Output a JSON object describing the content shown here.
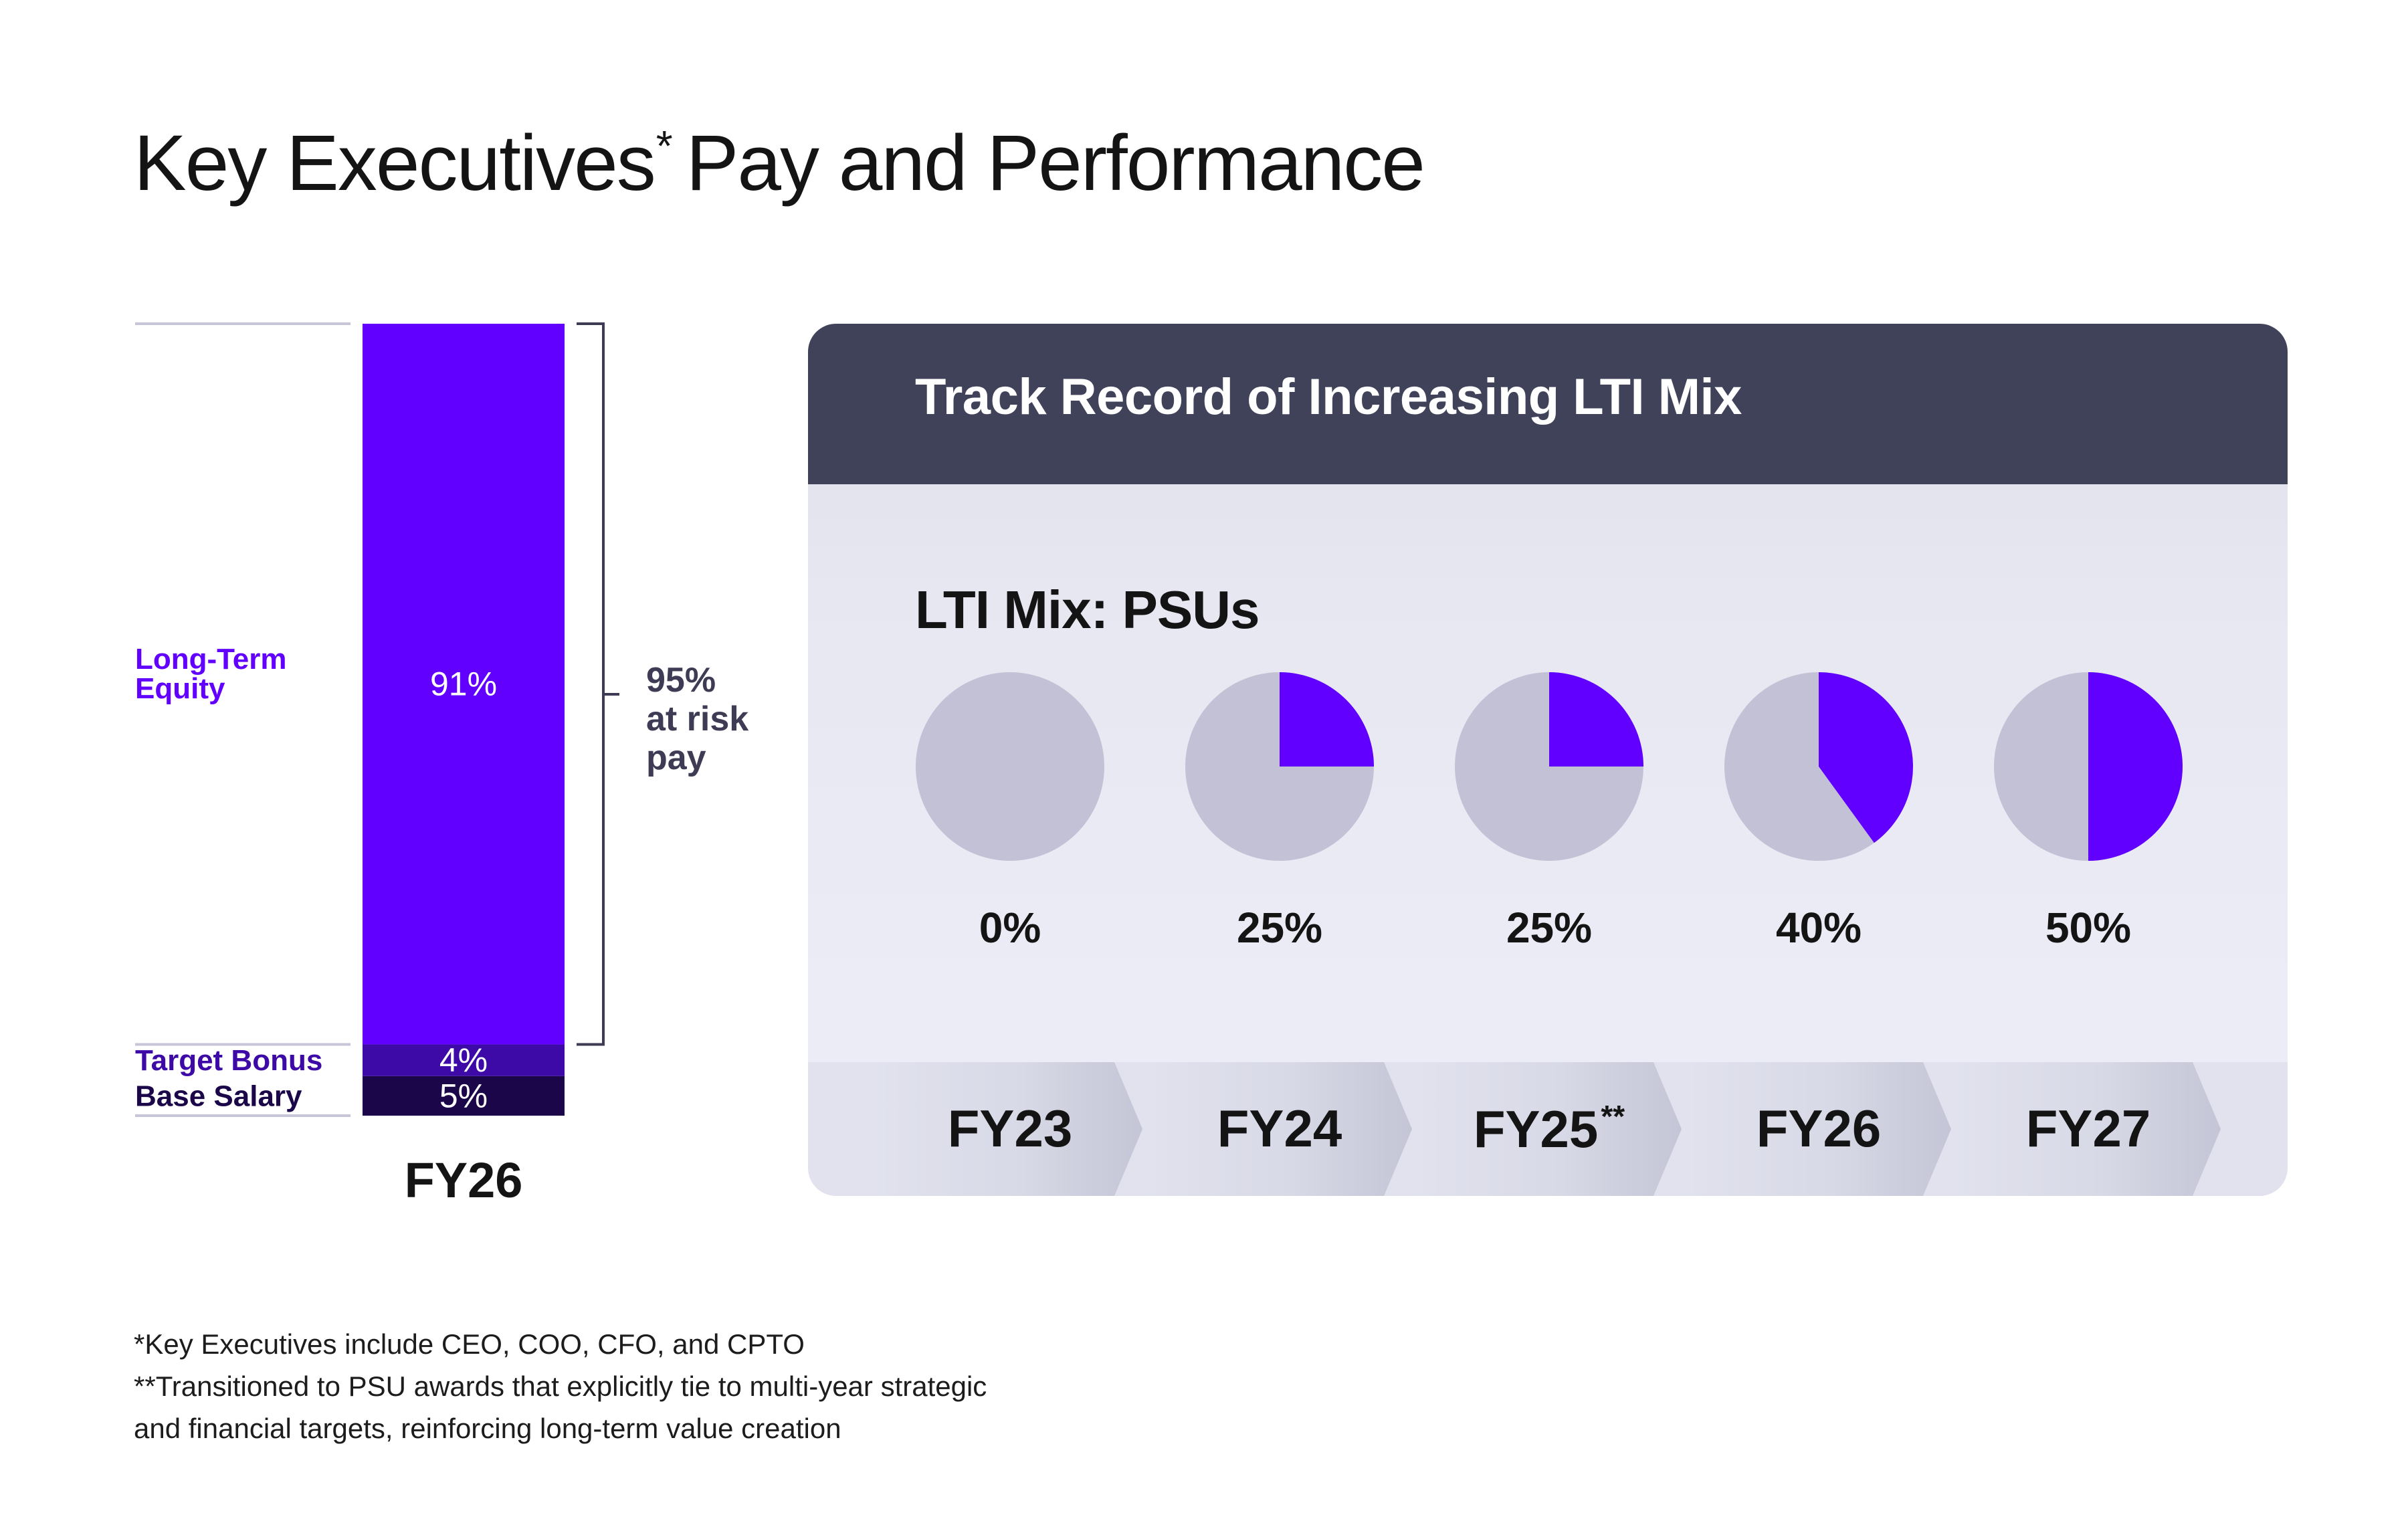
{
  "title": "Key Executives",
  "title_marker": "*",
  "title_rest": "Pay and Performance",
  "colors": {
    "primary": "#6200ff",
    "secondary": "#3d0aa8",
    "tertiary": "#1b0649",
    "pie_background": "#c3c1d6",
    "header": "#40425a"
  },
  "chart_data": [
    {
      "type": "bar",
      "stacked": true,
      "categories": [
        "FY26"
      ],
      "series": [
        {
          "name": "Base Salary",
          "values": [
            5
          ],
          "label": "5%"
        },
        {
          "name": "Target Bonus",
          "values": [
            4
          ],
          "label": "4%"
        },
        {
          "name": "Long-Term Equity",
          "values": [
            91
          ],
          "label": "91%"
        }
      ],
      "annotation": {
        "value": "95%",
        "lines": [
          "at risk",
          "pay"
        ]
      },
      "ylim": [
        0,
        100
      ]
    },
    {
      "type": "pie",
      "title": "Track Record of Increasing LTI Mix",
      "subtitle": "LTI Mix: PSUs",
      "categories": [
        "FY23",
        "FY24",
        "FY25",
        "FY26",
        "FY27"
      ],
      "values": [
        0,
        25,
        25,
        40,
        50
      ],
      "labels": [
        "0%",
        "25%",
        "25%",
        "40%",
        "50%"
      ],
      "category_markers": [
        "",
        "",
        "**",
        "",
        ""
      ]
    }
  ],
  "footnotes": [
    "*Key Executives include CEO, COO, CFO, and CPTO",
    "**Transitioned to PSU awards that explicitly tie to multi-year strategic",
    "and financial targets, reinforcing long-term value creation"
  ]
}
